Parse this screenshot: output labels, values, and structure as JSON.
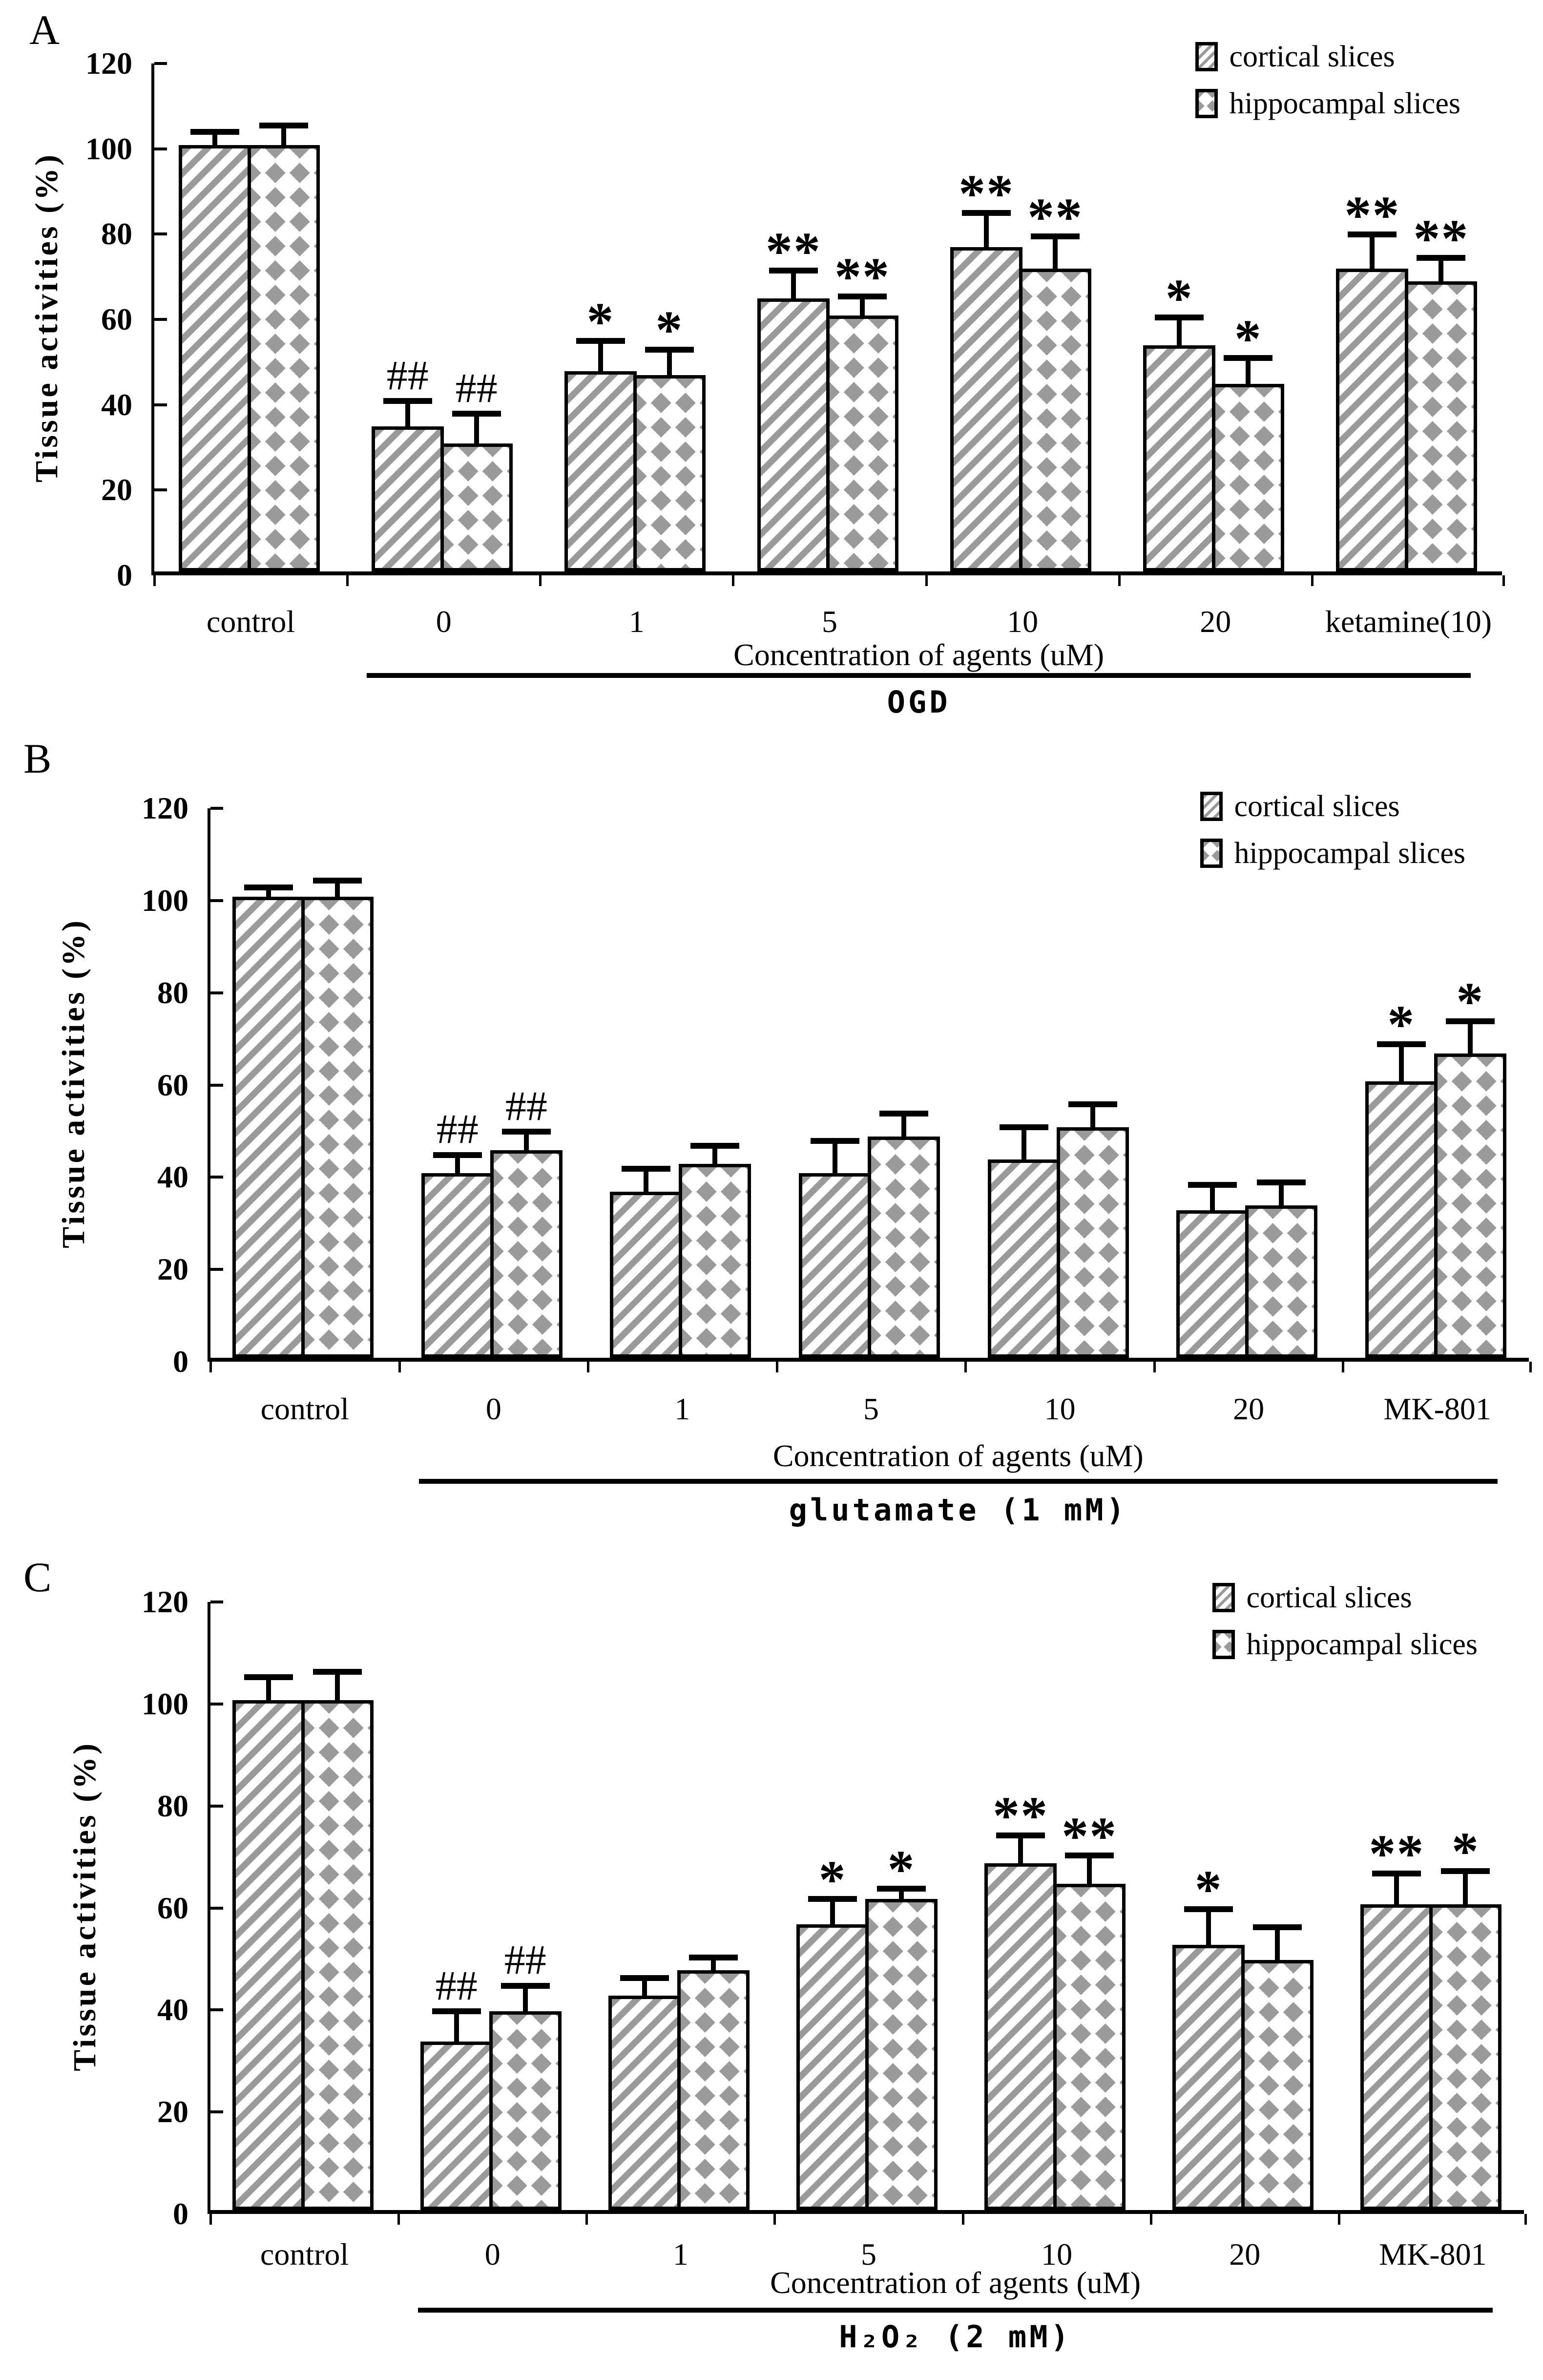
{
  "figure_title": "",
  "colors": {
    "pattern_gray": "#9a9a9a",
    "axis_black": "#000000",
    "background": "#ffffff"
  },
  "chart_data": [
    {
      "type": "bar",
      "panel": "A",
      "ylabel": "Tissue activities (%)",
      "xlabel": "Concentration of agents (uM)",
      "treatment": "OGD",
      "ylim": [
        0,
        120
      ],
      "yticks": [
        0,
        20,
        40,
        60,
        80,
        100,
        120
      ],
      "grid": "off",
      "legend_position": "top-right",
      "legend": [
        "cortical slices",
        "hippocampal slices"
      ],
      "categories": [
        "control",
        "0",
        "1",
        "5",
        "10",
        "20",
        "ketamine(10)"
      ],
      "series": [
        {
          "name": "cortical slices",
          "pattern": "diagonal-stripes",
          "values": [
            100,
            34,
            47,
            64,
            76,
            53,
            71
          ],
          "errors": [
            3,
            6,
            7,
            6.5,
            8,
            6.5,
            8
          ],
          "annotations": [
            "",
            "##",
            "*",
            "**",
            "**",
            "*",
            "**"
          ]
        },
        {
          "name": "hippocampal slices",
          "pattern": "diamond-grid",
          "values": [
            100,
            30,
            46,
            60,
            71,
            44,
            68
          ],
          "errors": [
            4.5,
            7,
            6,
            4.5,
            7.5,
            6,
            5.5
          ],
          "annotations": [
            "",
            "##",
            "*",
            "**",
            "**",
            "*",
            "**"
          ]
        }
      ]
    },
    {
      "type": "bar",
      "panel": "B",
      "ylabel": "Tissue activities (%)",
      "xlabel": "Concentration of agents (uM)",
      "treatment": "glutamate (1 mM)",
      "ylim": [
        0,
        120
      ],
      "yticks": [
        0,
        20,
        40,
        60,
        80,
        100,
        120
      ],
      "grid": "off",
      "legend_position": "top-right",
      "legend": [
        "cortical slices",
        "hippocampal slices"
      ],
      "categories": [
        "control",
        "0",
        "1",
        "5",
        "10",
        "20",
        "MK-801"
      ],
      "series": [
        {
          "name": "cortical slices",
          "pattern": "diagonal-stripes",
          "values": [
            100,
            40,
            36,
            40,
            43,
            32,
            60
          ],
          "errors": [
            2,
            4,
            5,
            7,
            7,
            5.5,
            8
          ],
          "annotations": [
            "",
            "##",
            "",
            "",
            "",
            "",
            "*"
          ]
        },
        {
          "name": "hippocampal slices",
          "pattern": "diamond-grid",
          "values": [
            100,
            45,
            42,
            48,
            50,
            33,
            66
          ],
          "errors": [
            3.5,
            4,
            4,
            5,
            5,
            5,
            7
          ],
          "annotations": [
            "",
            "##",
            "",
            "",
            "",
            "",
            "*"
          ]
        }
      ]
    },
    {
      "type": "bar",
      "panel": "C",
      "ylabel": "Tissue activities (%)",
      "xlabel": "Concentration of agents (uM)",
      "treatment": "H₂O₂ (2 mM)",
      "ylim": [
        0,
        120
      ],
      "yticks": [
        0,
        20,
        40,
        60,
        80,
        100,
        120
      ],
      "grid": "off",
      "legend_position": "top-right",
      "legend": [
        "cortical slices",
        "hippocampal slices"
      ],
      "categories": [
        "control",
        "0",
        "1",
        "5",
        "10",
        "20",
        "MK-801"
      ],
      "series": [
        {
          "name": "cortical slices",
          "pattern": "diagonal-stripes",
          "values": [
            100,
            33,
            42,
            56,
            68,
            52,
            60
          ],
          "errors": [
            4.5,
            6,
            3.5,
            5,
            5.5,
            7,
            6
          ],
          "annotations": [
            "",
            "##",
            "",
            "*",
            "**",
            "*",
            "**"
          ]
        },
        {
          "name": "hippocampal slices",
          "pattern": "diamond-grid",
          "values": [
            100,
            39,
            47,
            61,
            64,
            49,
            60
          ],
          "errors": [
            5.5,
            5,
            2.5,
            2,
            5.5,
            6.5,
            6.5
          ],
          "annotations": [
            "",
            "##",
            "",
            "*",
            "**",
            "",
            "*"
          ]
        }
      ]
    }
  ]
}
